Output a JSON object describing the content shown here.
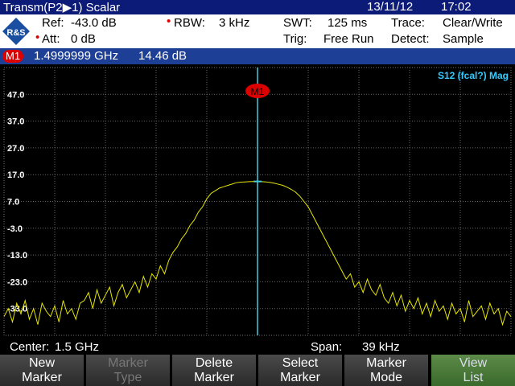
{
  "header": {
    "title": "Transm(P2▶1) Scalar",
    "date": "13/11/12",
    "time": "17:02"
  },
  "settings": {
    "ref_label": "Ref:",
    "ref_value": "-43.0 dB",
    "att_label": "Att:",
    "att_value": "0 dB",
    "rbw_label": "RBW:",
    "rbw_value": "3 kHz",
    "swt_label": "SWT:",
    "swt_value": "125 ms",
    "trig_label": "Trig:",
    "trig_value": "Free Run",
    "trace_label": "Trace:",
    "trace_value": "Clear/Write",
    "detect_label": "Detect:",
    "detect_value": "Sample"
  },
  "marker": {
    "label": "M1",
    "frequency": "1.4999999 GHz",
    "level": "14.46 dB"
  },
  "chart_data": {
    "type": "line",
    "trace_name": "S12 (fcal?) Mag",
    "color": "#e6e600",
    "grid": true,
    "ylim": [
      -43,
      57
    ],
    "yticks": [
      {
        "value": 47,
        "label": "47.0"
      },
      {
        "value": 37,
        "label": "37.0"
      },
      {
        "value": 27,
        "label": "27.0"
      },
      {
        "value": 17,
        "label": "17.0"
      },
      {
        "value": 7,
        "label": "7.0"
      },
      {
        "value": -3,
        "label": "-3.0"
      },
      {
        "value": -13,
        "label": "-13.0"
      },
      {
        "value": -23,
        "label": "-23.0"
      },
      {
        "value": -33,
        "label": "-33.0"
      }
    ],
    "values": [
      -36,
      -33,
      -38,
      -31,
      -35,
      -30,
      -37,
      -33,
      -39,
      -31,
      -34,
      -36,
      -32,
      -38,
      -30,
      -35,
      -33,
      -37,
      -31,
      -30,
      -27,
      -33,
      -26,
      -31,
      -28,
      -25,
      -32,
      -27,
      -24,
      -29,
      -26,
      -23,
      -27,
      -21,
      -25,
      -20,
      -22,
      -17,
      -20,
      -15,
      -12,
      -10,
      -7,
      -5,
      -2,
      0,
      3,
      5,
      8,
      10,
      11,
      12,
      12.5,
      13,
      13.5,
      14,
      14.2,
      14.3,
      14.4,
      14.45,
      14.46,
      14.4,
      14.3,
      14.1,
      13.8,
      13.4,
      13,
      12.3,
      11.5,
      10.5,
      9,
      7,
      5,
      2,
      -1,
      -4,
      -7,
      -10,
      -13,
      -16,
      -19,
      -22,
      -20,
      -25,
      -23,
      -27,
      -22,
      -26,
      -28,
      -24,
      -29,
      -31,
      -27,
      -32,
      -28,
      -34,
      -30,
      -33,
      -29,
      -35,
      -31,
      -36,
      -30,
      -34,
      -32,
      -37,
      -31,
      -35,
      -33,
      -38,
      -30,
      -36,
      -34,
      -32,
      -37,
      -31,
      -35,
      -33,
      -39,
      -34,
      -36
    ]
  },
  "footer": {
    "center_label": "Center:",
    "center_value": "1.5 GHz",
    "span_label": "Span:",
    "span_value": "39 kHz"
  },
  "softkeys": [
    {
      "line1": "New",
      "line2": "Marker"
    },
    {
      "line1": "Marker",
      "line2": "Type"
    },
    {
      "line1": "Delete",
      "line2": "Marker"
    },
    {
      "line1": "Select",
      "line2": "Marker"
    },
    {
      "line1": "Marker",
      "line2": "Mode"
    },
    {
      "line1": "View",
      "line2": "List"
    }
  ]
}
